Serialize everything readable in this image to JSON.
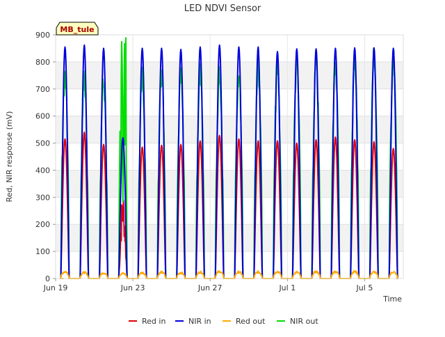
{
  "chart_data": {
    "type": "line",
    "title": "LED NDVI Sensor",
    "badge": "MB_tule",
    "xlabel": "Time",
    "ylabel": "Red, NIR response (mV)",
    "ylim": [
      0,
      900
    ],
    "yticks": [
      0,
      100,
      200,
      300,
      400,
      500,
      600,
      700,
      800,
      900
    ],
    "xlim": [
      "2023-06-19",
      "2023-07-07"
    ],
    "xticks": [
      {
        "date": "2023-06-19",
        "label": "Jun 19"
      },
      {
        "date": "2023-06-23",
        "label": "Jun 23"
      },
      {
        "date": "2023-06-27",
        "label": "Jun 27"
      },
      {
        "date": "2023-07-01",
        "label": "Jul 1"
      },
      {
        "date": "2023-07-05",
        "label": "Jul 5"
      }
    ],
    "grid": true,
    "legend_position": "bottom",
    "days": [
      "2023-06-19",
      "2023-06-20",
      "2023-06-21",
      "2023-06-22",
      "2023-06-23",
      "2023-06-24",
      "2023-06-25",
      "2023-06-26",
      "2023-06-27",
      "2023-06-28",
      "2023-06-29",
      "2023-06-30",
      "2023-07-01",
      "2023-07-02",
      "2023-07-03",
      "2023-07-04",
      "2023-07-05",
      "2023-07-06"
    ],
    "series": [
      {
        "name": "Red in",
        "color": "#dd0000",
        "daily_peak": [
          515,
          540,
          495,
          330,
          485,
          492,
          495,
          508,
          528,
          515,
          508,
          508,
          500,
          512,
          522,
          512,
          505,
          480
        ]
      },
      {
        "name": "NIR in",
        "color": "#0000dd",
        "daily_peak": [
          855,
          862,
          850,
          520,
          850,
          850,
          846,
          855,
          862,
          855,
          855,
          838,
          848,
          848,
          850,
          852,
          852,
          850
        ]
      },
      {
        "name": "Red out",
        "color": "#ffaa00",
        "daily_peak": [
          30,
          26,
          24,
          22,
          25,
          27,
          25,
          28,
          30,
          28,
          28,
          30,
          27,
          29,
          30,
          30,
          28,
          28
        ]
      },
      {
        "name": "NIR out",
        "color": "#00dd00",
        "daily_peak": [
          790,
          780,
          770,
          895,
          790,
          790,
          785,
          800,
          800,
          805,
          830,
          820,
          840,
          840,
          840,
          855,
          870,
          860
        ]
      }
    ]
  }
}
